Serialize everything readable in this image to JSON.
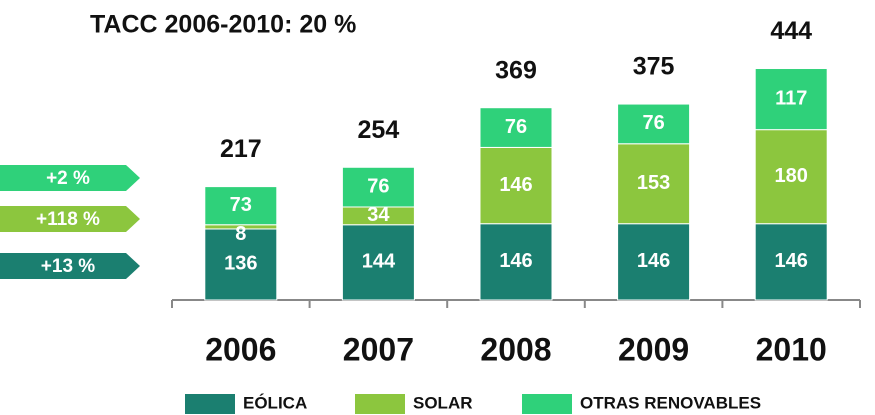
{
  "chart_data": {
    "type": "stacked_bar",
    "title": "TACC 2006-2010: 20 %",
    "categories": [
      "2006",
      "2007",
      "2008",
      "2009",
      "2010"
    ],
    "series": [
      {
        "name": "EÓLICA",
        "color": "#1b7f70",
        "values": [
          136,
          144,
          146,
          146,
          146
        ]
      },
      {
        "name": "SOLAR",
        "color": "#8cc63e",
        "values": [
          8,
          34,
          146,
          153,
          180
        ]
      },
      {
        "name": "OTRAS RENOVABLES",
        "color": "#2fd17a",
        "values": [
          73,
          76,
          76,
          76,
          117
        ]
      }
    ],
    "totals": [
      217,
      254,
      369,
      375,
      444
    ],
    "annotations": [
      "+2 %",
      "+118 %",
      "+13 %"
    ]
  }
}
